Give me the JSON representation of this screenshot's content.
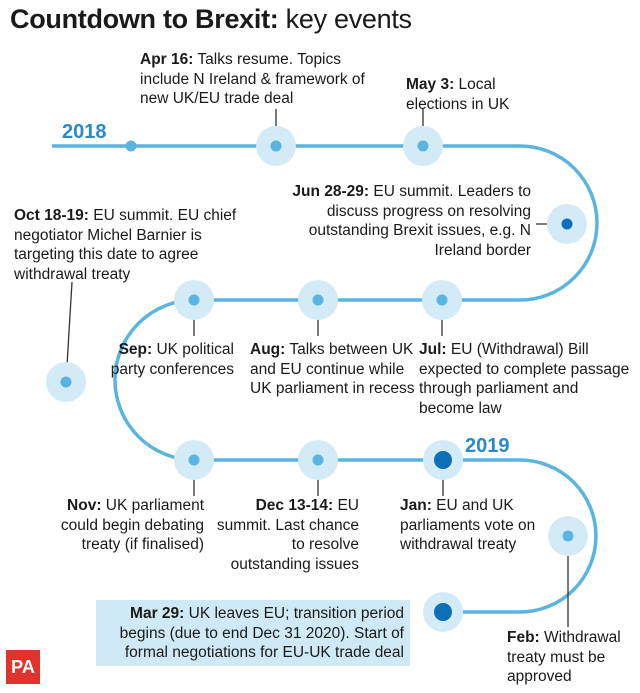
{
  "title": {
    "bold": "Countdown to Brexit:",
    "rest": " key events"
  },
  "years": [
    "2018",
    "2019"
  ],
  "events": [
    {
      "id": "apr16",
      "date": "Apr 16:",
      "text": " Talks resume. Topics include N Ireland & framework of new UK/EU trade deal"
    },
    {
      "id": "may3",
      "date": "May 3:",
      "text": " Local elections in UK"
    },
    {
      "id": "jun28",
      "date": "Jun 28-29:",
      "text": " EU summit. Leaders to discuss progress on resolving outstanding Brexit issues, e.g. N Ireland border"
    },
    {
      "id": "oct18",
      "date": "Oct 18-19:",
      "text": " EU summit. EU chief negotiator Michel Barnier is targeting this date to agree withdrawal treaty"
    },
    {
      "id": "sep",
      "date": "Sep:",
      "text": " UK political party conferences"
    },
    {
      "id": "aug",
      "date": "Aug:",
      "text": " Talks between UK and EU continue while UK parliament in recess"
    },
    {
      "id": "jul",
      "date": "Jul:",
      "text": " EU (Withdrawal) Bill expected to complete passage through parliament and become law"
    },
    {
      "id": "nov",
      "date": "Nov:",
      "text": " UK parliament could begin debating treaty (if finalised)"
    },
    {
      "id": "dec13",
      "date": "Dec 13-14:",
      "text": " EU summit. Last chance to resolve outstanding issues"
    },
    {
      "id": "jan",
      "date": "Jan:",
      "text": " EU and UK parliaments vote on withdrawal treaty"
    },
    {
      "id": "mar29",
      "date": "Mar 29:",
      "text": " UK leaves EU; transition period begins (due to end Dec 31 2020). Start of formal negotiations for EU-UK trade deal"
    },
    {
      "id": "feb",
      "date": "Feb:",
      "text": " Withdrawal treaty must be approved"
    }
  ],
  "logo": "PA",
  "colors": {
    "line": "#5ab4e0",
    "halo": "#d3ebf7",
    "dot_major": "#0d6fb8",
    "year": "#2b89c8",
    "highlight": "#cfe9f6",
    "logo": "#e0332b"
  }
}
